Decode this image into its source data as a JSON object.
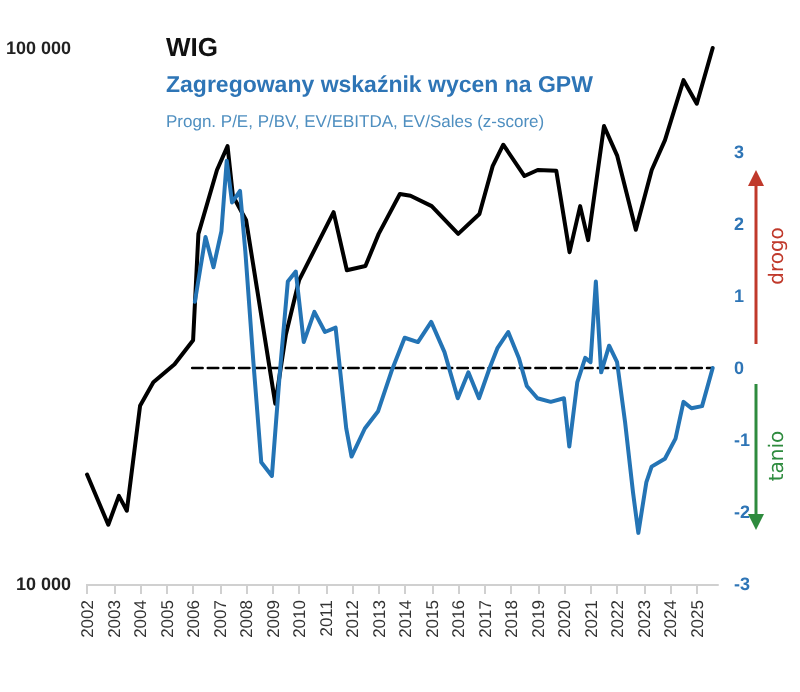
{
  "chart_data": {
    "type": "line",
    "title": "WIG",
    "subtitle": "Zagregowany wskaźnik wycen na GPW",
    "annotations": [
      "Progn. P/E, P/BV, EV/EBITDA, EV/Sales (z-score)",
      "drogo",
      "tanio"
    ],
    "log": "y",
    "xlim": [
      2002,
      2025.8
    ],
    "xticks": [
      2002,
      2003,
      2004,
      2005,
      2006,
      2007,
      2008,
      2009,
      2010,
      2011,
      2012,
      2013,
      2014,
      2015,
      2016,
      2017,
      2018,
      2019,
      2020,
      2021,
      2022,
      2023,
      2024,
      2025
    ],
    "ylim": [
      10000,
      100000
    ],
    "yticks": [
      {
        "value": 10000,
        "label": "10 000"
      },
      {
        "value": 100000,
        "label": "100 000"
      }
    ],
    "y2lim": [
      -3,
      3
    ],
    "y2ticks": [
      -3,
      -2,
      -1,
      0,
      1,
      2,
      3
    ],
    "grid": false,
    "marker": "none",
    "line_style": "solid",
    "series": [
      {
        "color": "#000000",
        "x": [
          2002,
          2002.8,
          2003.2,
          2003.5,
          2004,
          2004.5,
          2005.3,
          2006,
          2006.2,
          2006.9,
          2007.3,
          2007.5,
          2008,
          2009.1,
          2009.5,
          2010,
          2011.3,
          2011.8,
          2012.5,
          2013,
          2013.8,
          2014.2,
          2015,
          2016,
          2016.8,
          2017.3,
          2017.7,
          2018.5,
          2019,
          2019.7,
          2020.2,
          2020.6,
          2020.9,
          2021.5,
          2022,
          2022.7,
          2023.3,
          2023.8,
          2024.5,
          2025,
          2025.6
        ],
        "values": [
          16000,
          12900,
          14600,
          13700,
          21500,
          23800,
          25700,
          28500,
          45000,
          59200,
          65600,
          53000,
          47700,
          21700,
          29200,
          36900,
          49400,
          38500,
          39200,
          45000,
          53400,
          53000,
          50700,
          45000,
          49000,
          60200,
          66000,
          57700,
          59200,
          59000,
          41600,
          50700,
          43800,
          71500,
          62900,
          45800,
          59200,
          67300,
          87100,
          78700,
          100000
        ]
      },
      {
        "color": "#2474b5",
        "axis": "y2",
        "x": [
          2006.1,
          2006.5,
          2006.8,
          2007.1,
          2007.3,
          2007.5,
          2007.8,
          2008,
          2008.3,
          2008.6,
          2009,
          2009.3,
          2009.6,
          2009.9,
          2010.2,
          2010.6,
          2011,
          2011.4,
          2011.8,
          2012,
          2012.5,
          2013,
          2013.5,
          2014,
          2014.5,
          2015,
          2015.5,
          2016,
          2016.4,
          2016.8,
          2017.2,
          2017.5,
          2017.9,
          2018.3,
          2018.6,
          2019,
          2019.5,
          2020,
          2020.2,
          2020.5,
          2020.8,
          2021,
          2021.2,
          2021.4,
          2021.7,
          2022,
          2022.3,
          2022.6,
          2022.8,
          2023.1,
          2023.3,
          2023.8,
          2024.2,
          2024.5,
          2024.8,
          2025.2,
          2025.6
        ],
        "values": [
          0.92,
          1.82,
          1.4,
          1.9,
          2.88,
          2.3,
          2.46,
          1.62,
          0.1,
          -1.31,
          -1.5,
          -0.06,
          1.2,
          1.34,
          0.36,
          0.78,
          0.5,
          0.56,
          -0.84,
          -1.23,
          -0.84,
          -0.6,
          -0.05,
          0.42,
          0.36,
          0.64,
          0.22,
          -0.42,
          -0.06,
          -0.42,
          0,
          0.28,
          0.5,
          0.14,
          -0.25,
          -0.42,
          -0.47,
          -0.42,
          -1.09,
          -0.2,
          0.14,
          0.08,
          1.2,
          -0.06,
          0.31,
          0.08,
          -0.75,
          -1.73,
          -2.29,
          -1.59,
          -1.37,
          -1.26,
          -0.98,
          -0.47,
          -0.56,
          -0.53,
          0
        ]
      },
      {
        "color": "#000000",
        "axis": "y2",
        "line_style": "dashed",
        "x": [
          2006,
          2025.6
        ],
        "values": [
          0,
          0
        ]
      }
    ]
  }
}
